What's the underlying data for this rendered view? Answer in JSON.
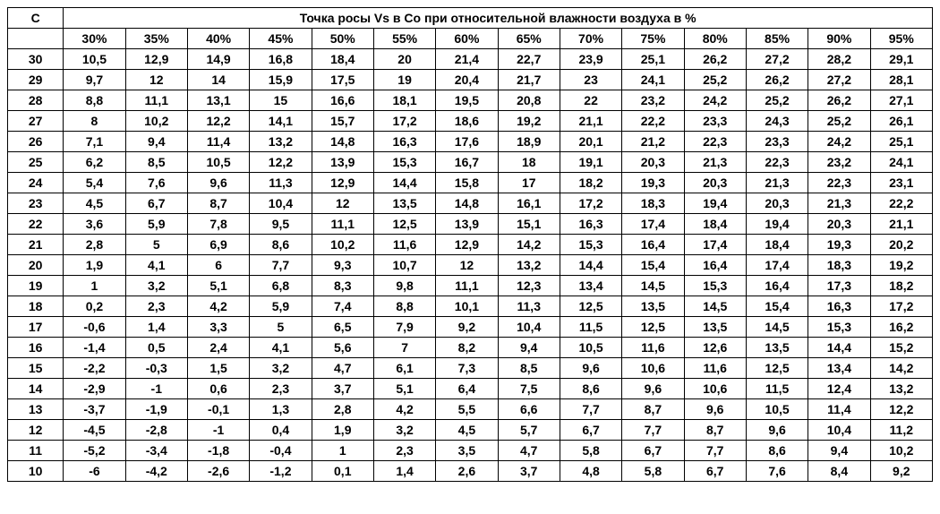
{
  "table": {
    "corner_label": "C",
    "title": "Точка росы Vs в Со при относительной влажности воздуха в %",
    "humidity_headers": [
      "30%",
      "35%",
      "40%",
      "45%",
      "50%",
      "55%",
      "60%",
      "65%",
      "70%",
      "75%",
      "80%",
      "85%",
      "90%",
      "95%"
    ],
    "temperatures": [
      "30",
      "29",
      "28",
      "27",
      "26",
      "25",
      "24",
      "23",
      "22",
      "21",
      "20",
      "19",
      "18",
      "17",
      "16",
      "15",
      "14",
      "13",
      "12",
      "11",
      "10"
    ],
    "rows": [
      [
        "10,5",
        "12,9",
        "14,9",
        "16,8",
        "18,4",
        "20",
        "21,4",
        "22,7",
        "23,9",
        "25,1",
        "26,2",
        "27,2",
        "28,2",
        "29,1"
      ],
      [
        "9,7",
        "12",
        "14",
        "15,9",
        "17,5",
        "19",
        "20,4",
        "21,7",
        "23",
        "24,1",
        "25,2",
        "26,2",
        "27,2",
        "28,1"
      ],
      [
        "8,8",
        "11,1",
        "13,1",
        "15",
        "16,6",
        "18,1",
        "19,5",
        "20,8",
        "22",
        "23,2",
        "24,2",
        "25,2",
        "26,2",
        "27,1"
      ],
      [
        "8",
        "10,2",
        "12,2",
        "14,1",
        "15,7",
        "17,2",
        "18,6",
        "19,2",
        "21,1",
        "22,2",
        "23,3",
        "24,3",
        "25,2",
        "26,1"
      ],
      [
        "7,1",
        "9,4",
        "11,4",
        "13,2",
        "14,8",
        "16,3",
        "17,6",
        "18,9",
        "20,1",
        "21,2",
        "22,3",
        "23,3",
        "24,2",
        "25,1"
      ],
      [
        "6,2",
        "8,5",
        "10,5",
        "12,2",
        "13,9",
        "15,3",
        "16,7",
        "18",
        "19,1",
        "20,3",
        "21,3",
        "22,3",
        "23,2",
        "24,1"
      ],
      [
        "5,4",
        "7,6",
        "9,6",
        "11,3",
        "12,9",
        "14,4",
        "15,8",
        "17",
        "18,2",
        "19,3",
        "20,3",
        "21,3",
        "22,3",
        "23,1"
      ],
      [
        "4,5",
        "6,7",
        "8,7",
        "10,4",
        "12",
        "13,5",
        "14,8",
        "16,1",
        "17,2",
        "18,3",
        "19,4",
        "20,3",
        "21,3",
        "22,2"
      ],
      [
        "3,6",
        "5,9",
        "7,8",
        "9,5",
        "11,1",
        "12,5",
        "13,9",
        "15,1",
        "16,3",
        "17,4",
        "18,4",
        "19,4",
        "20,3",
        "21,1"
      ],
      [
        "2,8",
        "5",
        "6,9",
        "8,6",
        "10,2",
        "11,6",
        "12,9",
        "14,2",
        "15,3",
        "16,4",
        "17,4",
        "18,4",
        "19,3",
        "20,2"
      ],
      [
        "1,9",
        "4,1",
        "6",
        "7,7",
        "9,3",
        "10,7",
        "12",
        "13,2",
        "14,4",
        "15,4",
        "16,4",
        "17,4",
        "18,3",
        "19,2"
      ],
      [
        "1",
        "3,2",
        "5,1",
        "6,8",
        "8,3",
        "9,8",
        "11,1",
        "12,3",
        "13,4",
        "14,5",
        "15,3",
        "16,4",
        "17,3",
        "18,2"
      ],
      [
        "0,2",
        "2,3",
        "4,2",
        "5,9",
        "7,4",
        "8,8",
        "10,1",
        "11,3",
        "12,5",
        "13,5",
        "14,5",
        "15,4",
        "16,3",
        "17,2"
      ],
      [
        "-0,6",
        "1,4",
        "3,3",
        "5",
        "6,5",
        "7,9",
        "9,2",
        "10,4",
        "11,5",
        "12,5",
        "13,5",
        "14,5",
        "15,3",
        "16,2"
      ],
      [
        "-1,4",
        "0,5",
        "2,4",
        "4,1",
        "5,6",
        "7",
        "8,2",
        "9,4",
        "10,5",
        "11,6",
        "12,6",
        "13,5",
        "14,4",
        "15,2"
      ],
      [
        "-2,2",
        "-0,3",
        "1,5",
        "3,2",
        "4,7",
        "6,1",
        "7,3",
        "8,5",
        "9,6",
        "10,6",
        "11,6",
        "12,5",
        "13,4",
        "14,2"
      ],
      [
        "-2,9",
        "-1",
        "0,6",
        "2,3",
        "3,7",
        "5,1",
        "6,4",
        "7,5",
        "8,6",
        "9,6",
        "10,6",
        "11,5",
        "12,4",
        "13,2"
      ],
      [
        "-3,7",
        "-1,9",
        "-0,1",
        "1,3",
        "2,8",
        "4,2",
        "5,5",
        "6,6",
        "7,7",
        "8,7",
        "9,6",
        "10,5",
        "11,4",
        "12,2"
      ],
      [
        "-4,5",
        "-2,8",
        "-1",
        "0,4",
        "1,9",
        "3,2",
        "4,5",
        "5,7",
        "6,7",
        "7,7",
        "8,7",
        "9,6",
        "10,4",
        "11,2"
      ],
      [
        "-5,2",
        "-3,4",
        "-1,8",
        "-0,4",
        "1",
        "2,3",
        "3,5",
        "4,7",
        "5,8",
        "6,7",
        "7,7",
        "8,6",
        "9,4",
        "10,2"
      ],
      [
        "-6",
        "-4,2",
        "-2,6",
        "-1,2",
        "0,1",
        "1,4",
        "2,6",
        "3,7",
        "4,8",
        "5,8",
        "6,7",
        "7,6",
        "8,4",
        "9,2"
      ]
    ],
    "style": {
      "background_color": "#ffffff",
      "border_color": "#000000",
      "text_color": "#000000",
      "font_size": 14,
      "font_weight": "bold",
      "cell_padding": 3
    }
  }
}
